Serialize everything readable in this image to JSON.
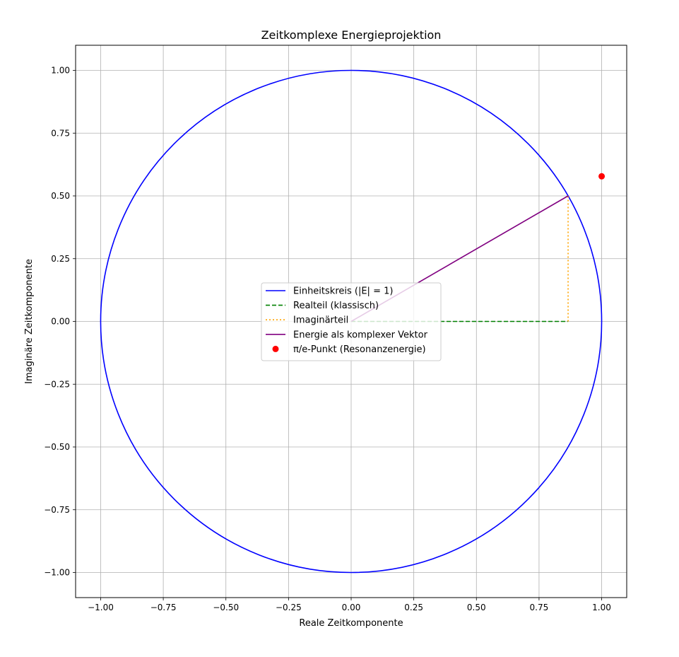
{
  "chart_data": {
    "type": "line",
    "title": "Zeitkomplexe Energieprojektion",
    "xlabel": "Reale Zeitkomponente",
    "ylabel": "Imaginäre Zeitkomponente",
    "xlim": [
      -1.1,
      1.1
    ],
    "ylim": [
      -1.1,
      1.1
    ],
    "grid": true,
    "legend_position": "center",
    "xticks": [
      -1.0,
      -0.75,
      -0.5,
      -0.25,
      0.0,
      0.25,
      0.5,
      0.75,
      1.0
    ],
    "yticks": [
      -1.0,
      -0.75,
      -0.5,
      -0.25,
      0.0,
      0.25,
      0.5,
      0.75,
      1.0
    ],
    "xtick_labels": [
      "−1.00",
      "−0.75",
      "−0.50",
      "−0.25",
      "0.00",
      "0.25",
      "0.50",
      "0.75",
      "1.00"
    ],
    "ytick_labels": [
      "−1.00",
      "−0.75",
      "−0.50",
      "−0.25",
      "0.00",
      "0.25",
      "0.50",
      "0.75",
      "1.00"
    ],
    "series": [
      {
        "name": "Einheitskreis (|E| = 1)",
        "kind": "circle",
        "center": [
          0,
          0
        ],
        "radius": 1,
        "color": "#0000ff",
        "style": "solid"
      },
      {
        "name": "Realteil (klassisch)",
        "kind": "line",
        "x": [
          0,
          0.866
        ],
        "y": [
          0,
          0
        ],
        "color": "#008000",
        "style": "dashed"
      },
      {
        "name": "Imaginärteil",
        "kind": "line",
        "x": [
          0.866,
          0.866
        ],
        "y": [
          0,
          0.5
        ],
        "color": "#ffa500",
        "style": "dotted"
      },
      {
        "name": "Energie als komplexer Vektor",
        "kind": "line",
        "x": [
          0,
          0.866
        ],
        "y": [
          0,
          0.5
        ],
        "color": "#800080",
        "style": "solid"
      },
      {
        "name": "π/e-Punkt (Resonanzenergie)",
        "kind": "scatter",
        "x": [
          1.0
        ],
        "y": [
          0.578
        ],
        "color": "#ff0000"
      }
    ]
  }
}
